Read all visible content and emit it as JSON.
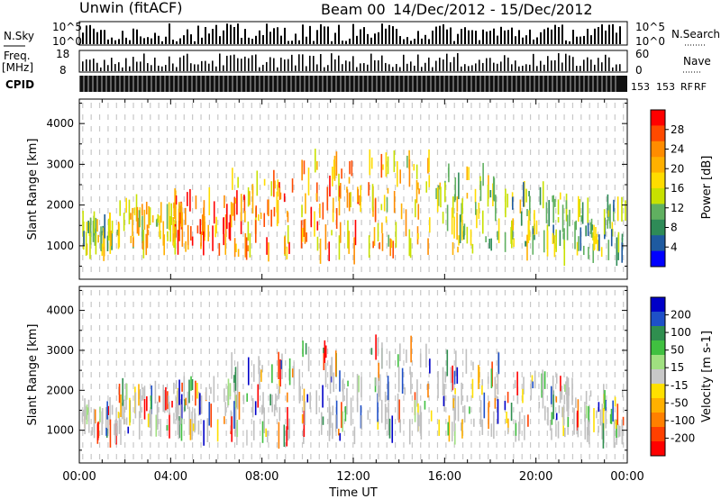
{
  "header": {
    "station": "Unwin (fitACF)",
    "beam": "Beam 00",
    "date_range": "14/Dec/2012 - 15/Dec/2012"
  },
  "strip": {
    "nsky_label": "N.Sky",
    "nsearch_label": "N.Search",
    "nsky_ticks": [
      "10^5",
      "10^0"
    ],
    "nsky_right_ticks": [
      "10^5",
      "10^0"
    ],
    "freq_label": "Freq.",
    "freq_unit": "[MHz]",
    "freq_ticks": [
      "18",
      "8"
    ],
    "nave_label": "Nave",
    "nave_ticks": [
      "60",
      "0"
    ],
    "cpid_label": "CPID",
    "cpid_fragments": [
      "153",
      "153",
      "RF",
      "RF"
    ]
  },
  "power_colorbar": {
    "label": "Power [dB]",
    "ticks": [
      "28",
      "24",
      "20",
      "16",
      "12",
      "8",
      "4"
    ],
    "colors": [
      "#ff0000",
      "#ff4a00",
      "#ff8c00",
      "#ffb000",
      "#ffdc00",
      "#c8e100",
      "#60b060",
      "#2e8b57",
      "#1e5aa0",
      "#0000ff"
    ]
  },
  "velocity_colorbar": {
    "label": "Velocity [m s-1]",
    "ticks": [
      "200",
      "100",
      "50",
      "15",
      "-15",
      "-50",
      "-100",
      "-200"
    ],
    "colors": [
      "#0000c8",
      "#1e50c8",
      "#2f8f4f",
      "#40c040",
      "#a0e080",
      "#c8c8c8",
      "#ffe000",
      "#ffb000",
      "#ff8000",
      "#ff4000",
      "#ff0000"
    ]
  },
  "chart_data": [
    {
      "type": "heatmap",
      "title": "",
      "quantity": "Power",
      "xlabel": "",
      "ylabel": "Slant Range [km]",
      "x_ticks": [
        "00:00",
        "04:00",
        "08:00",
        "12:00",
        "16:00",
        "20:00",
        "00:00"
      ],
      "y_ticks": [
        1000,
        2000,
        3000,
        4000
      ],
      "ylim": [
        180,
        4600
      ],
      "xlim_hours": [
        0,
        24
      ],
      "scatter_bands_km": [
        {
          "hour": 0.5,
          "range": [
            900,
            1600
          ],
          "level": 12
        },
        {
          "hour": 3.0,
          "range": [
            1000,
            2000
          ],
          "level": 16
        },
        {
          "hour": 5.5,
          "range": [
            900,
            2200
          ],
          "level": 24
        },
        {
          "hour": 8.0,
          "range": [
            800,
            2700
          ],
          "level": 20
        },
        {
          "hour": 11.0,
          "range": [
            800,
            3100
          ],
          "level": 20
        },
        {
          "hour": 14.0,
          "range": [
            900,
            3200
          ],
          "level": 18
        },
        {
          "hour": 17.0,
          "range": [
            900,
            2800
          ],
          "level": 14
        },
        {
          "hour": 20.0,
          "range": [
            900,
            2300
          ],
          "level": 12
        },
        {
          "hour": 22.5,
          "range": [
            800,
            2000
          ],
          "level": 10
        }
      ]
    },
    {
      "type": "heatmap",
      "title": "",
      "quantity": "Velocity",
      "xlabel": "Time UT",
      "ylabel": "Slant Range [km]",
      "x_ticks": [
        "00:00",
        "04:00",
        "08:00",
        "12:00",
        "16:00",
        "20:00",
        "00:00"
      ],
      "y_ticks": [
        1000,
        2000,
        3000,
        4000
      ],
      "ylim": [
        180,
        4600
      ],
      "xlim_hours": [
        0,
        24
      ],
      "scatter_bands_km": [
        {
          "hour": 0.5,
          "range": [
            900,
            1600
          ],
          "level": -15
        },
        {
          "hour": 3.0,
          "range": [
            1000,
            2000
          ],
          "level": 15
        },
        {
          "hour": 5.5,
          "range": [
            900,
            2200
          ],
          "level": -50
        },
        {
          "hour": 8.0,
          "range": [
            800,
            2700
          ],
          "level": 15
        },
        {
          "hour": 11.0,
          "range": [
            800,
            3100
          ],
          "level": -15
        },
        {
          "hour": 14.0,
          "range": [
            900,
            3200
          ],
          "level": 50
        },
        {
          "hour": 17.0,
          "range": [
            900,
            2800
          ],
          "level": -15
        },
        {
          "hour": 20.0,
          "range": [
            900,
            2300
          ],
          "level": 15
        },
        {
          "hour": 22.5,
          "range": [
            800,
            2000
          ],
          "level": -50
        }
      ]
    }
  ]
}
